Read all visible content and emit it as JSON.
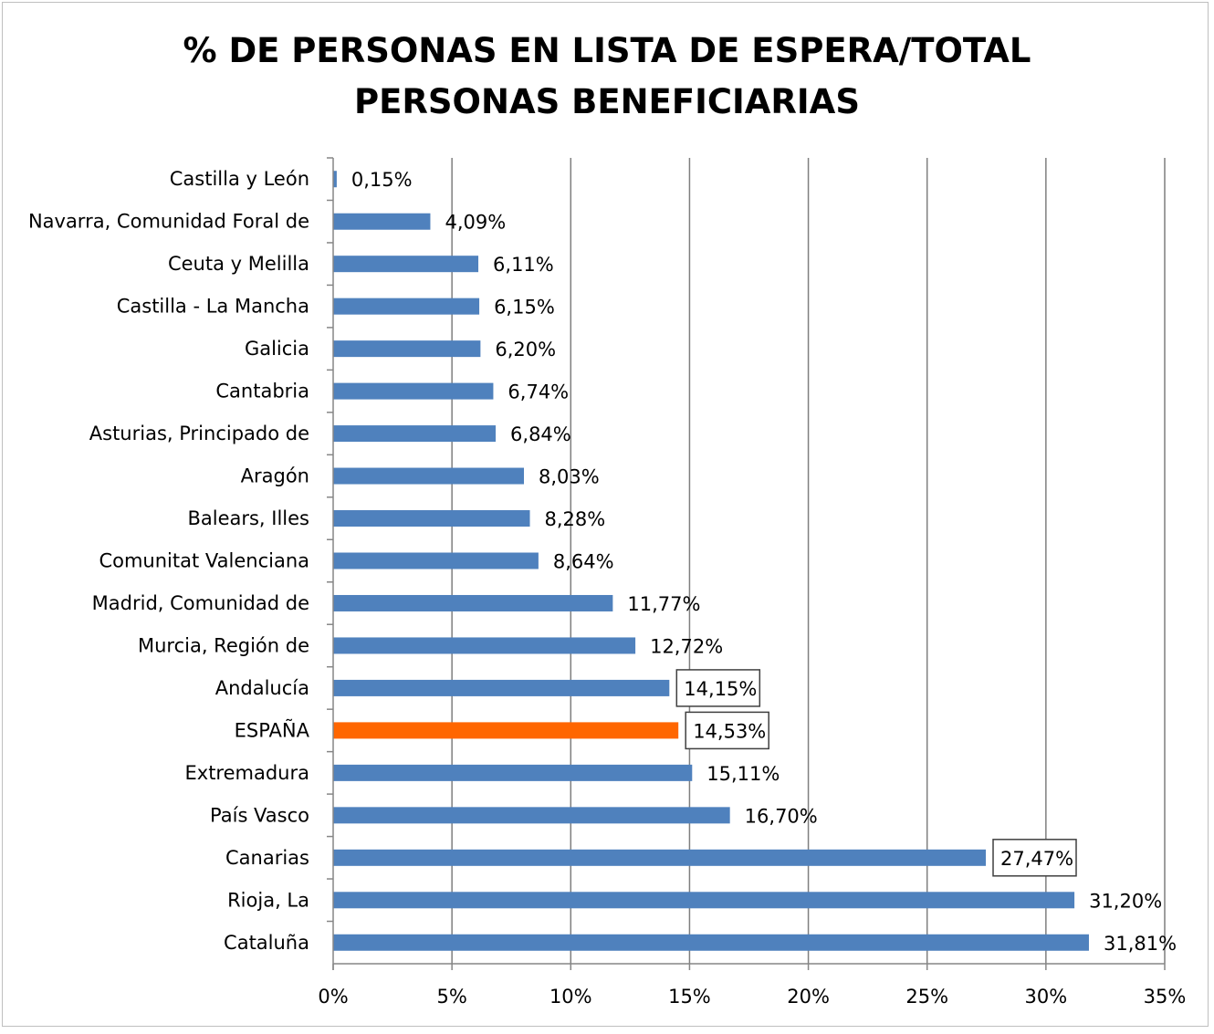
{
  "chart_data": {
    "type": "bar",
    "orientation": "horizontal",
    "title_lines": [
      "% DE PERSONAS EN LISTA DE ESPERA/TOTAL",
      "PERSONAS BENEFICIARIAS"
    ],
    "categories": [
      "Castilla y León",
      "Navarra, Comunidad Foral de",
      "Ceuta y Melilla",
      "Castilla - La Mancha",
      "Galicia",
      "Cantabria",
      "Asturias, Principado de",
      "Aragón",
      "Balears, Illes",
      "Comunitat Valenciana",
      "Madrid, Comunidad de",
      "Murcia, Región de",
      "Andalucía",
      "ESPAÑA",
      "Extremadura",
      "País Vasco",
      "Canarias",
      "Rioja, La",
      "Cataluña"
    ],
    "values": [
      0.15,
      4.09,
      6.11,
      6.15,
      6.2,
      6.74,
      6.84,
      8.03,
      8.28,
      8.64,
      11.77,
      12.72,
      14.15,
      14.53,
      15.11,
      16.7,
      27.47,
      31.2,
      31.81
    ],
    "data_labels": [
      "0,15%",
      "4,09%",
      "6,11%",
      "6,15%",
      "6,20%",
      "6,74%",
      "6,84%",
      "8,03%",
      "8,28%",
      "8,64%",
      "11,77%",
      "12,72%",
      "14,15%",
      "14,53%",
      "15,11%",
      "16,70%",
      "27,47%",
      "31,20%",
      "31,81%"
    ],
    "boxed_labels": [
      "Andalucía",
      "ESPAÑA",
      "Canarias"
    ],
    "highlight": "ESPAÑA",
    "x_ticks": [
      0,
      5,
      10,
      15,
      20,
      25,
      30,
      35
    ],
    "x_tick_labels": [
      "0%",
      "5%",
      "10%",
      "15%",
      "20%",
      "25%",
      "30%",
      "35%"
    ],
    "xlim": [
      0,
      35
    ],
    "grid": "vertical",
    "legend": "none",
    "colors": {
      "bar": "#4f81bd",
      "highlight": "#ff6600",
      "grid": "#7f7f7f",
      "axis": "#868686"
    }
  }
}
